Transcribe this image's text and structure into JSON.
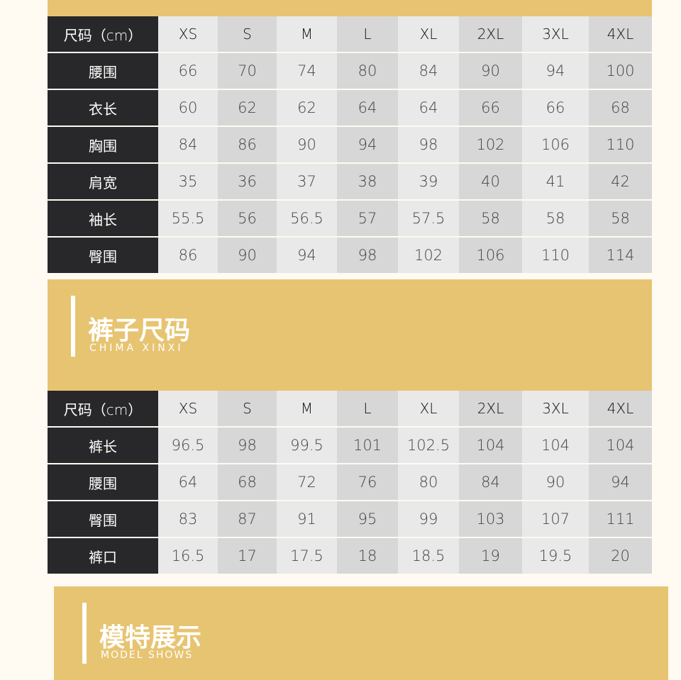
{
  "sizes": [
    "XS",
    "S",
    "M",
    "L",
    "XL",
    "2XL",
    "3XL",
    "4XL"
  ],
  "header_label": "尺码（cm）",
  "top_table": {
    "rows": [
      {
        "label": "腰围",
        "values": [
          "66",
          "70",
          "74",
          "80",
          "84",
          "90",
          "94",
          "100"
        ]
      },
      {
        "label": "衣长",
        "values": [
          "60",
          "62",
          "62",
          "64",
          "64",
          "66",
          "66",
          "68"
        ]
      },
      {
        "label": "胸围",
        "values": [
          "84",
          "86",
          "90",
          "94",
          "98",
          "102",
          "106",
          "110"
        ]
      },
      {
        "label": "肩宽",
        "values": [
          "35",
          "36",
          "37",
          "38",
          "39",
          "40",
          "41",
          "42"
        ]
      },
      {
        "label": "袖长",
        "values": [
          "55.5",
          "56",
          "56.5",
          "57",
          "57.5",
          "58",
          "58",
          "58"
        ]
      },
      {
        "label": "臀围",
        "values": [
          "86",
          "90",
          "94",
          "98",
          "102",
          "106",
          "110",
          "114"
        ]
      }
    ]
  },
  "pants_section": {
    "title": "裤子尺码",
    "subtitle": "CHIMA XINXI"
  },
  "pants_table": {
    "rows": [
      {
        "label": "裤长",
        "values": [
          "96.5",
          "98",
          "99.5",
          "101",
          "102.5",
          "104",
          "104",
          "104"
        ]
      },
      {
        "label": "腰围",
        "values": [
          "64",
          "68",
          "72",
          "76",
          "80",
          "84",
          "90",
          "94"
        ]
      },
      {
        "label": "臀围",
        "values": [
          "83",
          "87",
          "91",
          "95",
          "99",
          "103",
          "107",
          "111"
        ]
      },
      {
        "label": "裤口",
        "values": [
          "16.5",
          "17",
          "17.5",
          "18",
          "18.5",
          "19",
          "19.5",
          "20"
        ]
      }
    ]
  },
  "model_section": {
    "title": "模特展示",
    "subtitle": "MODEL SHOWS"
  },
  "colors": {
    "gold": "#e7c471",
    "dark": "#28282a",
    "background": "#fffaf2"
  }
}
